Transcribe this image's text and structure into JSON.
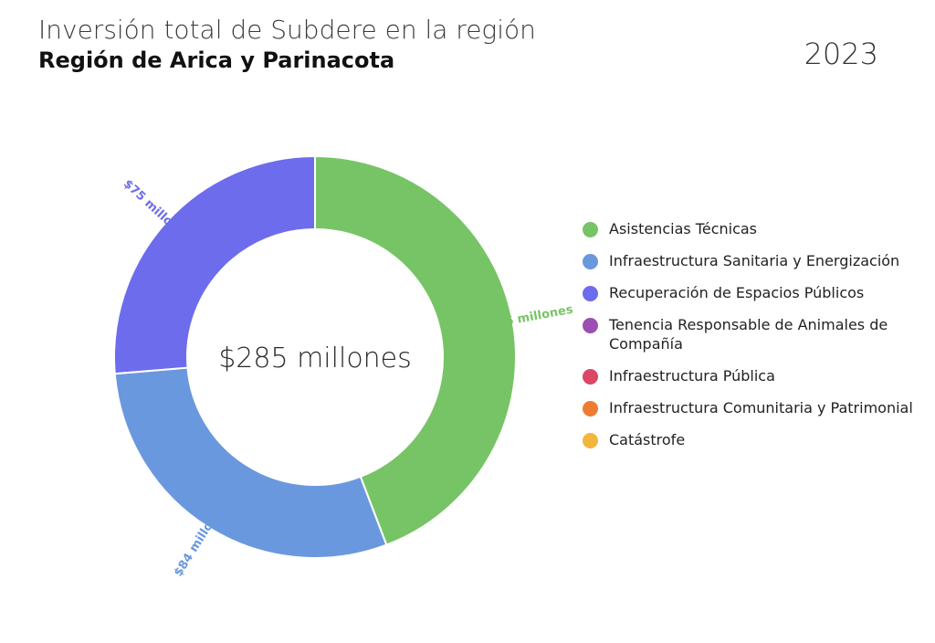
{
  "header": {
    "title": "Inversión total de Subdere en la región",
    "subtitle": "Región de Arica y Parinacota",
    "year": "2023"
  },
  "chart_data": {
    "type": "donut",
    "center_label": "$285 millones",
    "total": 285,
    "unit": "millones",
    "slices": [
      {
        "name": "Asistencias Técnicas",
        "value": 126,
        "label": "$126 millones",
        "color": "#77c466"
      },
      {
        "name": "Infraestructura Sanitaria y Energización",
        "value": 84,
        "label": "$84 millones",
        "color": "#6a98de"
      },
      {
        "name": "Recuperación de Espacios Públicos",
        "value": 75,
        "label": "$75 millones",
        "color": "#6c6ced"
      }
    ],
    "legend": [
      {
        "label": "Asistencias Técnicas",
        "color": "#77c466"
      },
      {
        "label": "Infraestructura Sanitaria y Energización",
        "color": "#6a98de"
      },
      {
        "label": "Recuperación de Espacios Públicos",
        "color": "#6c6ced"
      },
      {
        "label": "Tenencia Responsable de Animales de Compañía",
        "color": "#9c4fb3"
      },
      {
        "label": "Infraestructura Pública",
        "color": "#db4764"
      },
      {
        "label": "Infraestructura Comunitaria y Patrimonial",
        "color": "#ef7b33"
      },
      {
        "label": "Catástrofe",
        "color": "#f3b63c"
      }
    ],
    "legend_position": "right"
  }
}
